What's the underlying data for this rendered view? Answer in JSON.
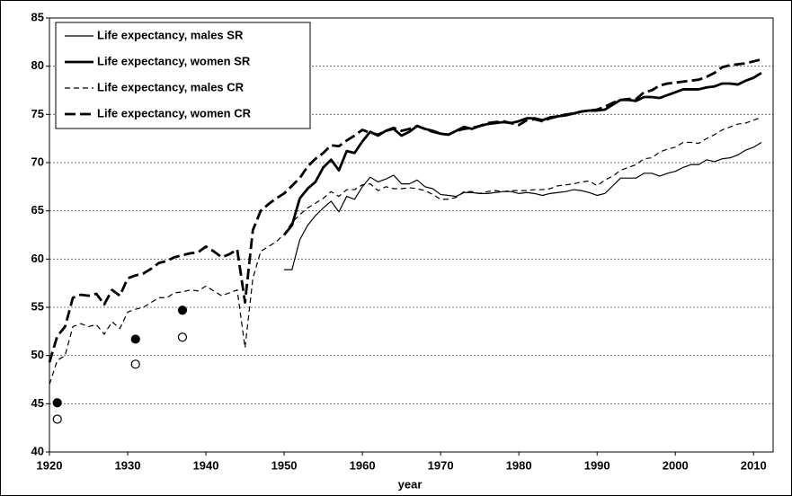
{
  "chart_data": {
    "type": "line",
    "xlabel": "year",
    "xlim": [
      1920,
      2012.5
    ],
    "xticks": [
      1920,
      1930,
      1940,
      1950,
      1960,
      1970,
      1980,
      1990,
      2000,
      2010
    ],
    "ylim": [
      40,
      85
    ],
    "yticks": [
      40,
      45,
      50,
      55,
      60,
      65,
      70,
      75,
      80,
      85
    ],
    "grid": true,
    "legend": "upper left",
    "series": [
      {
        "name": "Life expectancy, males SR",
        "color": "#000000",
        "width": 1.2,
        "dashed": false,
        "x": [
          1950,
          1951,
          1952,
          1953,
          1954,
          1955,
          1956,
          1957,
          1958,
          1959,
          1960,
          1961,
          1962,
          1963,
          1964,
          1965,
          1966,
          1967,
          1968,
          1969,
          1970,
          1971,
          1972,
          1973,
          1974,
          1975,
          1976,
          1977,
          1978,
          1979,
          1980,
          1981,
          1982,
          1983,
          1984,
          1985,
          1986,
          1987,
          1988,
          1989,
          1990,
          1991,
          1992,
          1993,
          1994,
          1995,
          1996,
          1997,
          1998,
          1999,
          2000,
          2001,
          2002,
          2003,
          2004,
          2005,
          2006,
          2007,
          2008,
          2009,
          2010,
          2011
        ],
        "values": [
          58.9,
          58.9,
          62,
          63.5,
          64.5,
          65.3,
          66,
          64.9,
          66.5,
          66.2,
          67.5,
          68.5,
          68,
          68.3,
          68.7,
          67.8,
          67.8,
          68.2,
          67.5,
          67.3,
          66.7,
          66.6,
          66.5,
          66.9,
          66.9,
          66.8,
          66.8,
          66.9,
          67,
          67,
          66.8,
          66.9,
          66.8,
          66.6,
          66.8,
          66.9,
          67,
          67.2,
          67.1,
          66.9,
          66.6,
          66.8,
          67.6,
          68.4,
          68.4,
          68.4,
          68.9,
          68.9,
          68.6,
          68.9,
          69.1,
          69.5,
          69.8,
          69.8,
          70.3,
          70.1,
          70.4,
          70.5,
          70.8,
          71.3,
          71.6,
          72.1
        ]
      },
      {
        "name": "Life expectancy, women SR",
        "color": "#000000",
        "width": 2.8,
        "dashed": false,
        "x": [
          1950,
          1951,
          1952,
          1953,
          1954,
          1955,
          1956,
          1957,
          1958,
          1959,
          1960,
          1961,
          1962,
          1963,
          1964,
          1965,
          1966,
          1967,
          1968,
          1969,
          1970,
          1971,
          1972,
          1973,
          1974,
          1975,
          1976,
          1977,
          1978,
          1979,
          1980,
          1981,
          1982,
          1983,
          1984,
          1985,
          1986,
          1987,
          1988,
          1989,
          1990,
          1991,
          1992,
          1993,
          1994,
          1995,
          1996,
          1997,
          1998,
          1999,
          2000,
          2001,
          2002,
          2003,
          2004,
          2005,
          2006,
          2007,
          2008,
          2009,
          2010,
          2011
        ],
        "values": [
          62.5,
          63.5,
          66.3,
          67.3,
          68,
          69.5,
          70.3,
          69.2,
          71.2,
          71,
          72.2,
          73.2,
          72.8,
          73.3,
          73.5,
          72.8,
          73.2,
          73.8,
          73.5,
          73.3,
          73,
          72.9,
          73.3,
          73.7,
          73.5,
          73.8,
          74,
          74.1,
          74.2,
          74.1,
          74.3,
          74.6,
          74.6,
          74.4,
          74.7,
          74.8,
          74.9,
          75.1,
          75.3,
          75.4,
          75.4,
          75.5,
          76,
          76.5,
          76.5,
          76.4,
          76.8,
          76.8,
          76.7,
          77,
          77.3,
          77.6,
          77.6,
          77.6,
          77.8,
          77.9,
          78.2,
          78.2,
          78.1,
          78.5,
          78.8,
          79.3
        ]
      },
      {
        "name": "Life expectancy, males CR",
        "color": "#000000",
        "width": 1.2,
        "dashed": true,
        "x": [
          1920,
          1921,
          1922,
          1923,
          1924,
          1925,
          1926,
          1927,
          1928,
          1929,
          1930,
          1931,
          1932,
          1933,
          1934,
          1935,
          1936,
          1937,
          1938,
          1939,
          1940,
          1941,
          1942,
          1943,
          1944,
          1945,
          1946,
          1947,
          1948,
          1949,
          1950,
          1951,
          1952,
          1953,
          1954,
          1955,
          1956,
          1957,
          1958,
          1959,
          1960,
          1961,
          1962,
          1963,
          1964,
          1965,
          1966,
          1967,
          1968,
          1969,
          1970,
          1971,
          1972,
          1973,
          1974,
          1975,
          1976,
          1977,
          1978,
          1979,
          1980,
          1981,
          1982,
          1983,
          1984,
          1985,
          1986,
          1987,
          1988,
          1989,
          1990,
          1991,
          1992,
          1993,
          1994,
          1995,
          1996,
          1997,
          1998,
          1999,
          2000,
          2001,
          2002,
          2003,
          2004,
          2005,
          2006,
          2007,
          2008,
          2009,
          2010,
          2011
        ],
        "values": [
          47,
          49.5,
          50,
          53,
          53.3,
          53,
          53.2,
          52.2,
          53.5,
          52.8,
          54.5,
          54.8,
          55,
          55.5,
          56,
          56,
          56.5,
          56.6,
          56.8,
          56.7,
          57.2,
          56.7,
          56.2,
          56.5,
          56.8,
          50.8,
          58,
          60.8,
          61.3,
          61.8,
          62.6,
          63.8,
          64.6,
          65.3,
          65.8,
          66.3,
          67,
          66.5,
          67.2,
          67.2,
          67.7,
          67.8,
          67.1,
          67.5,
          67.3,
          67.3,
          67.4,
          67.3,
          67.1,
          66.7,
          66.2,
          66.2,
          66.4,
          67,
          67,
          66.8,
          67,
          67.1,
          67,
          67.1,
          67.1,
          67.1,
          67.2,
          67.2,
          67.3,
          67.6,
          67.7,
          67.8,
          68,
          68.1,
          67.6,
          68.2,
          68.6,
          69.2,
          69.5,
          69.8,
          70.4,
          70.5,
          71.1,
          71.4,
          71.6,
          72.1,
          72.1,
          72,
          72.5,
          72.9,
          73.4,
          73.7,
          74,
          74.1,
          74.4,
          74.7
        ]
      },
      {
        "name": "Life expectancy, women CR",
        "color": "#000000",
        "width": 2.8,
        "dashed": true,
        "x": [
          1920,
          1921,
          1922,
          1923,
          1924,
          1925,
          1926,
          1927,
          1928,
          1929,
          1930,
          1931,
          1932,
          1933,
          1934,
          1935,
          1936,
          1937,
          1938,
          1939,
          1940,
          1941,
          1942,
          1943,
          1944,
          1945,
          1946,
          1947,
          1948,
          1949,
          1950,
          1951,
          1952,
          1953,
          1954,
          1955,
          1956,
          1957,
          1958,
          1959,
          1960,
          1961,
          1962,
          1963,
          1964,
          1965,
          1966,
          1967,
          1968,
          1969,
          1970,
          1971,
          1972,
          1973,
          1974,
          1975,
          1976,
          1977,
          1978,
          1979,
          1980,
          1981,
          1982,
          1983,
          1984,
          1985,
          1986,
          1987,
          1988,
          1989,
          1990,
          1991,
          1992,
          1993,
          1994,
          1995,
          1996,
          1997,
          1998,
          1999,
          2000,
          2001,
          2002,
          2003,
          2004,
          2005,
          2006,
          2007,
          2008,
          2009,
          2010,
          2011
        ],
        "values": [
          49.3,
          52,
          53,
          56,
          56.3,
          56.2,
          56.4,
          55.3,
          56.8,
          56.2,
          58,
          58.3,
          58.5,
          59,
          59.6,
          59.8,
          60.2,
          60.4,
          60.6,
          60.7,
          61.3,
          60.8,
          60.2,
          60.5,
          61,
          55.5,
          63,
          65,
          65.7,
          66.3,
          66.8,
          67.6,
          68.4,
          69.6,
          70.4,
          71,
          71.8,
          71.7,
          72.3,
          72.8,
          73.4,
          73.1,
          72.9,
          73.3,
          73.6,
          73.3,
          73.5,
          73.8,
          73.5,
          73.2,
          73,
          72.9,
          73.3,
          73.5,
          73.6,
          73.8,
          74.1,
          74.2,
          74.3,
          74.1,
          73.9,
          74.4,
          74.5,
          74.3,
          74.6,
          74.8,
          75,
          75.1,
          75.3,
          75.4,
          75.5,
          75.8,
          76.2,
          76.5,
          76.6,
          76.6,
          77.3,
          77.5,
          78,
          78.2,
          78.3,
          78.4,
          78.5,
          78.6,
          78.9,
          79.3,
          79.9,
          80.1,
          80.2,
          80.3,
          80.5,
          80.7
        ]
      }
    ],
    "markers": [
      {
        "filled": true,
        "color": "#000000",
        "x": [
          1921,
          1931,
          1937
        ],
        "values": [
          45.1,
          51.7,
          54.7
        ]
      },
      {
        "filled": false,
        "color": "#000000",
        "x": [
          1921,
          1931,
          1937
        ],
        "values": [
          43.4,
          49.1,
          51.9
        ]
      }
    ]
  }
}
